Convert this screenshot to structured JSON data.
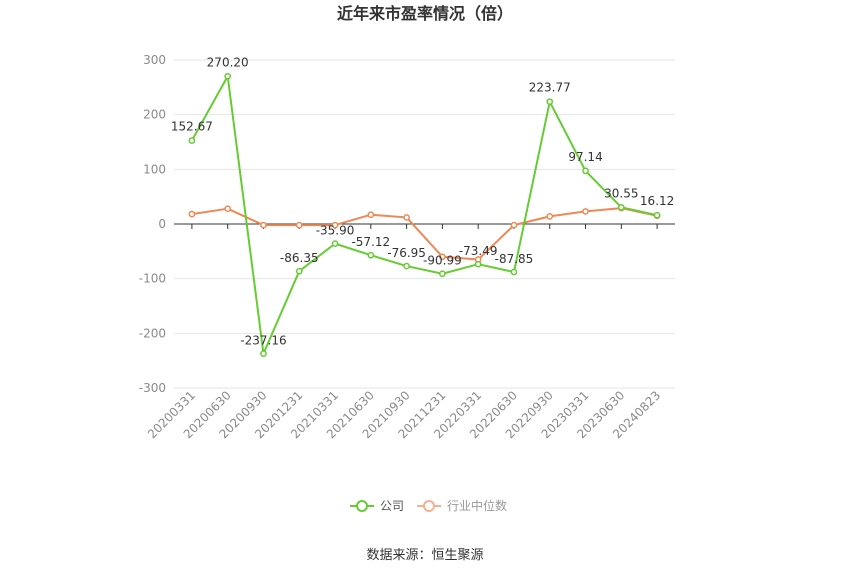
{
  "chart_data": {
    "type": "line",
    "title": "近年来市盈率情况（倍）",
    "categories": [
      "20200331",
      "20200630",
      "20200930",
      "20201231",
      "20210331",
      "20210630",
      "20210930",
      "20211231",
      "20220331",
      "20220630",
      "20220930",
      "20230331",
      "20230630",
      "20240823"
    ],
    "ylim": [
      -300,
      300
    ],
    "yticks": [
      300,
      200,
      100,
      0,
      -100,
      -200,
      -300
    ],
    "grid": true,
    "legend_position": "bottom",
    "series": [
      {
        "name": "公司",
        "color": "#66cc33",
        "values": [
          152.67,
          270.2,
          -237.16,
          -86.35,
          -35.9,
          -57.12,
          -76.95,
          -90.99,
          -73.49,
          -87.85,
          223.77,
          97.14,
          30.55,
          16.12
        ],
        "labels": [
          "152.67",
          "270.20",
          "-237.16",
          "-86.35",
          "-35.90",
          "-57.12",
          "-76.95",
          "-90.99",
          "-73.49",
          "-87.85",
          "223.77",
          "97.14",
          "30.55",
          "16.12"
        ]
      },
      {
        "name": "行业中位数",
        "color": "#ee8855",
        "values": [
          18,
          28,
          -2,
          -2,
          -2,
          17,
          12,
          -60,
          -65,
          -2,
          14,
          23,
          29,
          15
        ]
      }
    ],
    "source": "数据来源：恒生聚源"
  }
}
